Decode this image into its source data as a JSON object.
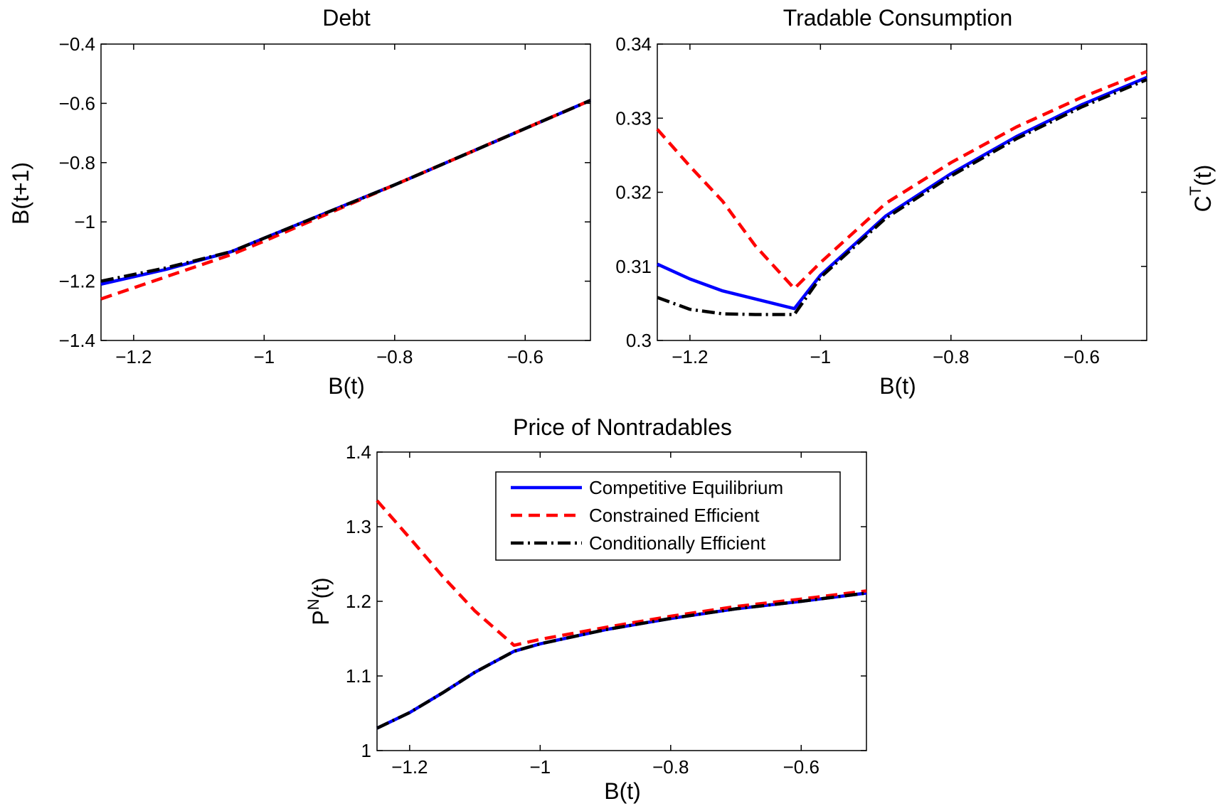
{
  "colors": {
    "competitive": "#0000ff",
    "constrained": "#ff0000",
    "conditional": "#000000"
  },
  "chart_data": [
    {
      "type": "line",
      "title": "Debt",
      "xlabel": "B(t)",
      "ylabel": "B(t+1)",
      "xlim": [
        -1.25,
        -0.5
      ],
      "ylim": [
        -1.4,
        -0.4
      ],
      "xticks": [
        -1.2,
        -1,
        -0.8,
        -0.6
      ],
      "xtick_labels": [
        "−1.2",
        "−1",
        "−0.8",
        "−0.6"
      ],
      "yticks": [
        -1.4,
        -1.2,
        -1,
        -0.8,
        -0.6,
        -0.4
      ],
      "ytick_labels": [
        "−1.4",
        "−1.2",
        "−1",
        "−0.8",
        "−0.6",
        "−0.4"
      ],
      "grid": false,
      "series": [
        {
          "name": "Competitive Equilibrium",
          "style": "solid",
          "color": "#0000ff",
          "x": [
            -1.25,
            -1.15,
            -1.05,
            -1.0,
            -0.9,
            -0.8,
            -0.7,
            -0.6,
            -0.5
          ],
          "y": [
            -1.21,
            -1.16,
            -1.1,
            -1.055,
            -0.965,
            -0.875,
            -0.78,
            -0.685,
            -0.59
          ]
        },
        {
          "name": "Constrained Efficient",
          "style": "dashed",
          "color": "#ff0000",
          "x": [
            -1.25,
            -1.15,
            -1.05,
            -1.0,
            -0.9,
            -0.8,
            -0.7,
            -0.6,
            -0.5
          ],
          "y": [
            -1.26,
            -1.185,
            -1.11,
            -1.065,
            -0.97,
            -0.875,
            -0.78,
            -0.685,
            -0.59
          ]
        },
        {
          "name": "Conditionally Efficient",
          "style": "dashdot",
          "color": "#000000",
          "x": [
            -1.25,
            -1.15,
            -1.05,
            -1.0,
            -0.9,
            -0.8,
            -0.7,
            -0.6,
            -0.5
          ],
          "y": [
            -1.2,
            -1.155,
            -1.1,
            -1.055,
            -0.965,
            -0.875,
            -0.78,
            -0.685,
            -0.59
          ]
        }
      ]
    },
    {
      "type": "line",
      "title": "Tradable Consumption",
      "xlabel": "B(t)",
      "ylabel": "C",
      "ylabel_sup": "T",
      "ylabel_tail": "(t)",
      "xlim": [
        -1.25,
        -0.5
      ],
      "ylim": [
        0.3,
        0.34
      ],
      "xticks": [
        -1.2,
        -1,
        -0.8,
        -0.6
      ],
      "xtick_labels": [
        "−1.2",
        "−1",
        "−0.8",
        "−0.6"
      ],
      "yticks": [
        0.3,
        0.31,
        0.32,
        0.33,
        0.34
      ],
      "ytick_labels": [
        "0.3",
        "0.31",
        "0.32",
        "0.33",
        "0.34"
      ],
      "grid": false,
      "series": [
        {
          "name": "Competitive Equilibrium",
          "style": "solid",
          "color": "#0000ff",
          "x": [
            -1.25,
            -1.2,
            -1.15,
            -1.1,
            -1.04,
            -1.0,
            -0.9,
            -0.8,
            -0.7,
            -0.6,
            -0.5
          ],
          "y": [
            0.3103,
            0.3083,
            0.3067,
            0.3056,
            0.3043,
            0.3088,
            0.3168,
            0.3225,
            0.3275,
            0.3318,
            0.3355
          ]
        },
        {
          "name": "Constrained Efficient",
          "style": "dashed",
          "color": "#ff0000",
          "x": [
            -1.25,
            -1.2,
            -1.15,
            -1.1,
            -1.04,
            -1.0,
            -0.9,
            -0.8,
            -0.7,
            -0.6,
            -0.5
          ],
          "y": [
            0.3285,
            0.3235,
            0.3188,
            0.3128,
            0.307,
            0.3105,
            0.3185,
            0.324,
            0.3288,
            0.3328,
            0.3363
          ]
        },
        {
          "name": "Conditionally Efficient",
          "style": "dashdot",
          "color": "#000000",
          "x": [
            -1.25,
            -1.2,
            -1.15,
            -1.1,
            -1.04,
            -1.0,
            -0.9,
            -0.8,
            -0.7,
            -0.6,
            -0.5
          ],
          "y": [
            0.3058,
            0.3042,
            0.3036,
            0.3035,
            0.3035,
            0.3085,
            0.3165,
            0.3222,
            0.3272,
            0.3315,
            0.3352
          ]
        }
      ]
    },
    {
      "type": "line",
      "title": "Price of Nontradables",
      "xlabel": "B(t)",
      "ylabel": "P",
      "ylabel_sup": "N",
      "ylabel_tail": "(t)",
      "xlim": [
        -1.25,
        -0.5
      ],
      "ylim": [
        1.0,
        1.4
      ],
      "xticks": [
        -1.2,
        -1,
        -0.8,
        -0.6
      ],
      "xtick_labels": [
        "−1.2",
        "−1",
        "−0.8",
        "−0.6"
      ],
      "yticks": [
        1.0,
        1.1,
        1.2,
        1.3,
        1.4
      ],
      "ytick_labels": [
        "1",
        "1.1",
        "1.2",
        "1.3",
        "1.4"
      ],
      "grid": false,
      "legend": {
        "position": "top-right",
        "entries": [
          "Competitive Equilibrium",
          "Constrained Efficient",
          "Conditionally Efficient"
        ]
      },
      "series": [
        {
          "name": "Competitive Equilibrium",
          "style": "solid",
          "color": "#0000ff",
          "x": [
            -1.25,
            -1.2,
            -1.15,
            -1.1,
            -1.04,
            -1.0,
            -0.9,
            -0.8,
            -0.7,
            -0.6,
            -0.5
          ],
          "y": [
            1.03,
            1.051,
            1.077,
            1.105,
            1.133,
            1.143,
            1.162,
            1.177,
            1.19,
            1.2,
            1.211
          ]
        },
        {
          "name": "Constrained Efficient",
          "style": "dashed",
          "color": "#ff0000",
          "x": [
            -1.25,
            -1.2,
            -1.15,
            -1.1,
            -1.04,
            -1.0,
            -0.9,
            -0.8,
            -0.7,
            -0.6,
            -0.5
          ],
          "y": [
            1.335,
            1.285,
            1.234,
            1.187,
            1.141,
            1.149,
            1.165,
            1.18,
            1.193,
            1.203,
            1.214
          ]
        },
        {
          "name": "Conditionally Efficient",
          "style": "dashdot",
          "color": "#000000",
          "x": [
            -1.25,
            -1.2,
            -1.15,
            -1.1,
            -1.04,
            -1.0,
            -0.9,
            -0.8,
            -0.7,
            -0.6,
            -0.5
          ],
          "y": [
            1.03,
            1.051,
            1.077,
            1.105,
            1.133,
            1.143,
            1.162,
            1.177,
            1.19,
            1.2,
            1.211
          ]
        }
      ]
    }
  ]
}
